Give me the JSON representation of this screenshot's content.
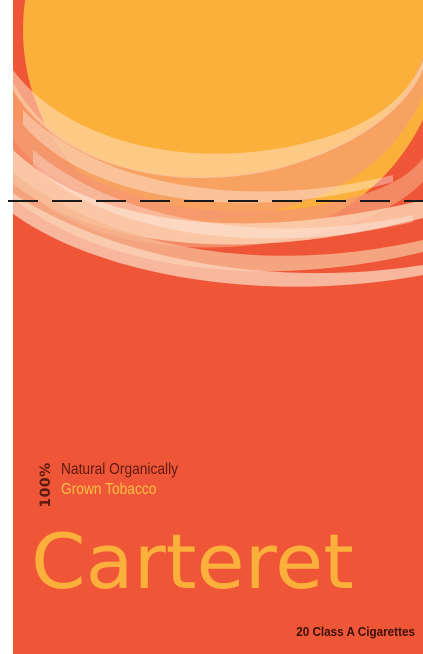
{
  "pack": {
    "percent": "100%",
    "claim_line1": "Natural Organically",
    "claim_line2": "Grown Tobacco",
    "brand_name": "Carteret",
    "count_label": "20 Class A Cigarettes"
  },
  "colors": {
    "background_red": "#ef5637",
    "sun_yellow": "#fbb03b",
    "swoosh_peach": "#f49a6a",
    "swoosh_light": "#fbd0b0",
    "brand_text": "#fbb03b",
    "claim_dark": "#5c1a10",
    "claim_yellow": "#fbc144",
    "dash_line": "#1a1a1a"
  },
  "icons": [
    "sun-circle-graphic",
    "brush-swoosh-graphic",
    "fold-dashed-line"
  ]
}
